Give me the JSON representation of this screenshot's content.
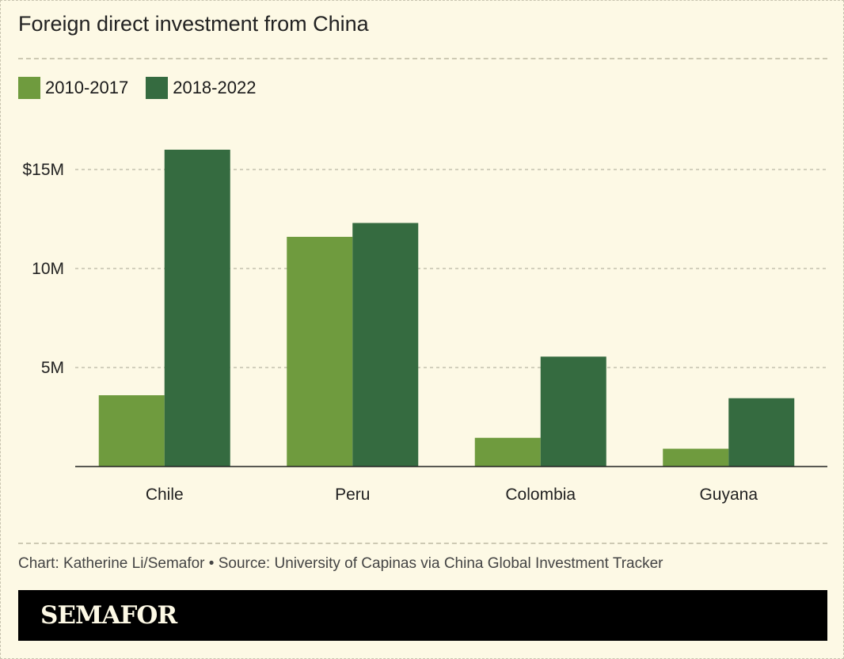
{
  "title": "Foreign direct investment from China",
  "footer": {
    "credit": "Chart: Katherine Li/Semafor • Source: University of Capinas via China Global Investment Tracker",
    "brand": "SEMAFOR"
  },
  "colors": {
    "background": "#fdf9e5",
    "series_light": "#6f9b3e",
    "series_dark": "#356b40",
    "brand_bar": "#000000"
  },
  "chart_data": {
    "type": "bar",
    "title": "Foreign direct investment from China",
    "categories": [
      "Chile",
      "Peru",
      "Colombia",
      "Guyana"
    ],
    "series": [
      {
        "name": "2010-2017",
        "color": "#6f9b3e",
        "values": [
          3.6,
          11.6,
          1.45,
          0.9
        ]
      },
      {
        "name": "2018-2022",
        "color": "#356b40",
        "values": [
          16.0,
          12.3,
          5.55,
          3.45
        ]
      }
    ],
    "y_ticks": [
      {
        "value": 5,
        "label": "5M"
      },
      {
        "value": 10,
        "label": "10M"
      },
      {
        "value": 15,
        "label": "$15M"
      }
    ],
    "ylim": [
      0,
      16.5
    ],
    "grid": true,
    "legend": "top-left"
  }
}
